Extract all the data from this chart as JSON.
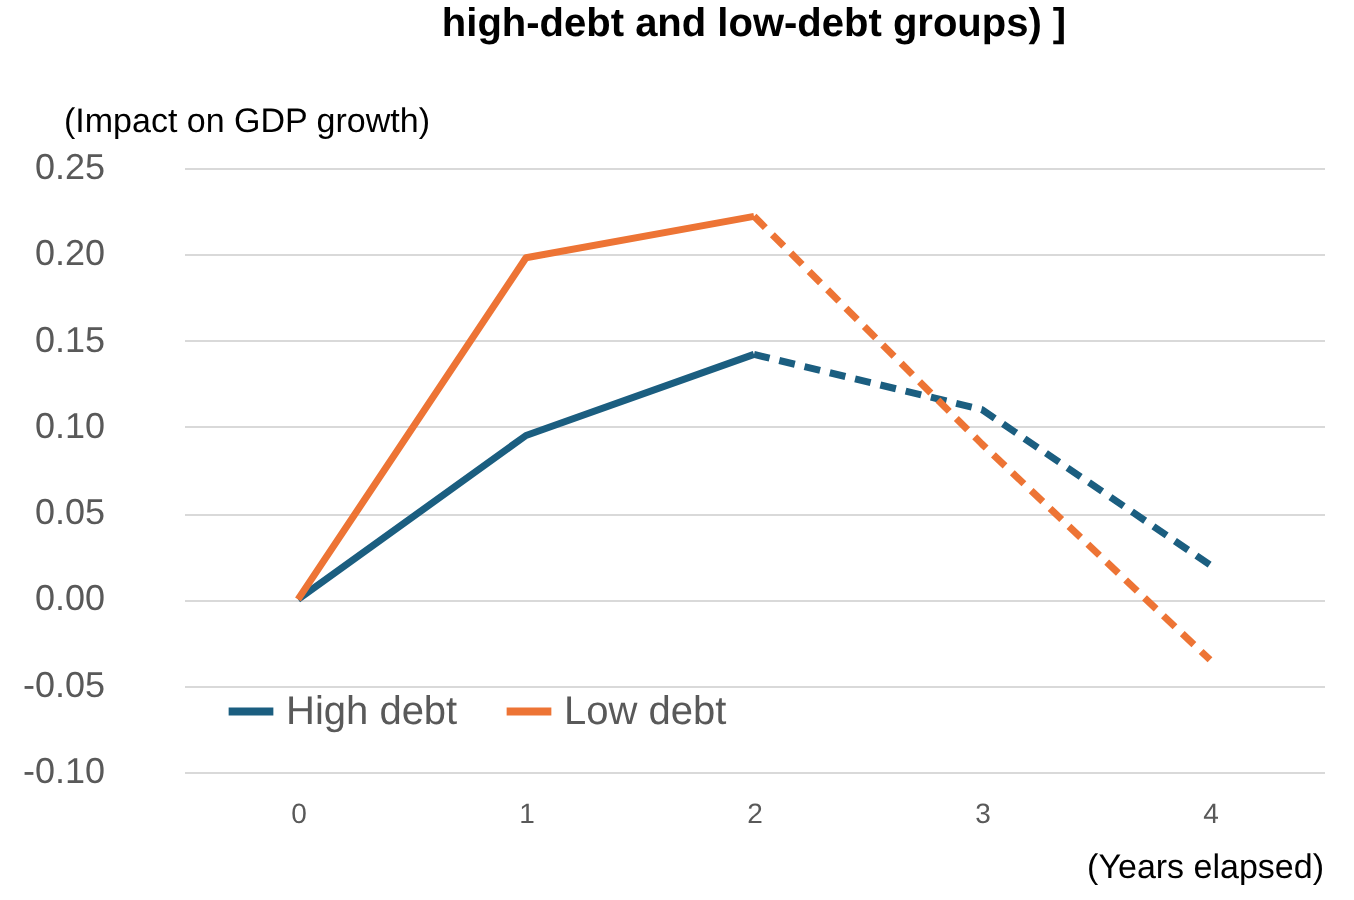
{
  "chart_data": {
    "type": "line",
    "title": "high-debt and low-debt groups) ]",
    "ylabel": "(Impact on GDP growth)",
    "xlabel": "(Years elapsed)",
    "categories": [
      "0",
      "1",
      "2",
      "3",
      "4"
    ],
    "series": [
      {
        "name": "High debt",
        "color": "#1b5e80",
        "line_style": "solid",
        "values": [
          0,
          0.095,
          0.142,
          null,
          null
        ]
      },
      {
        "name": "Low debt",
        "color": "#ed7435",
        "line_style": "solid",
        "values": [
          0,
          0.198,
          0.222,
          null,
          null
        ]
      },
      {
        "color": "#1b5e80",
        "line_style": "dashed",
        "values": [
          null,
          null,
          0.142,
          0.11,
          0.02
        ]
      },
      {
        "color": "#ed7435",
        "line_style": "dashed",
        "values": [
          null,
          null,
          0.222,
          0.09,
          -0.035
        ]
      }
    ],
    "ylim": [
      -0.1,
      0.25
    ],
    "yticks": [
      {
        "value": -0.1,
        "label": "-0.10"
      },
      {
        "value": -0.05,
        "label": "-0.05"
      },
      {
        "value": 0,
        "label": "0.00"
      },
      {
        "value": 0.05,
        "label": "0.05"
      },
      {
        "value": 0.1,
        "label": "0.10"
      },
      {
        "value": 0.15,
        "label": "0.15"
      },
      {
        "value": 0.2,
        "label": "0.20"
      },
      {
        "value": 0.25,
        "label": "0.25"
      }
    ],
    "grid": "y",
    "legend": "bottom left",
    "marker": "none"
  }
}
